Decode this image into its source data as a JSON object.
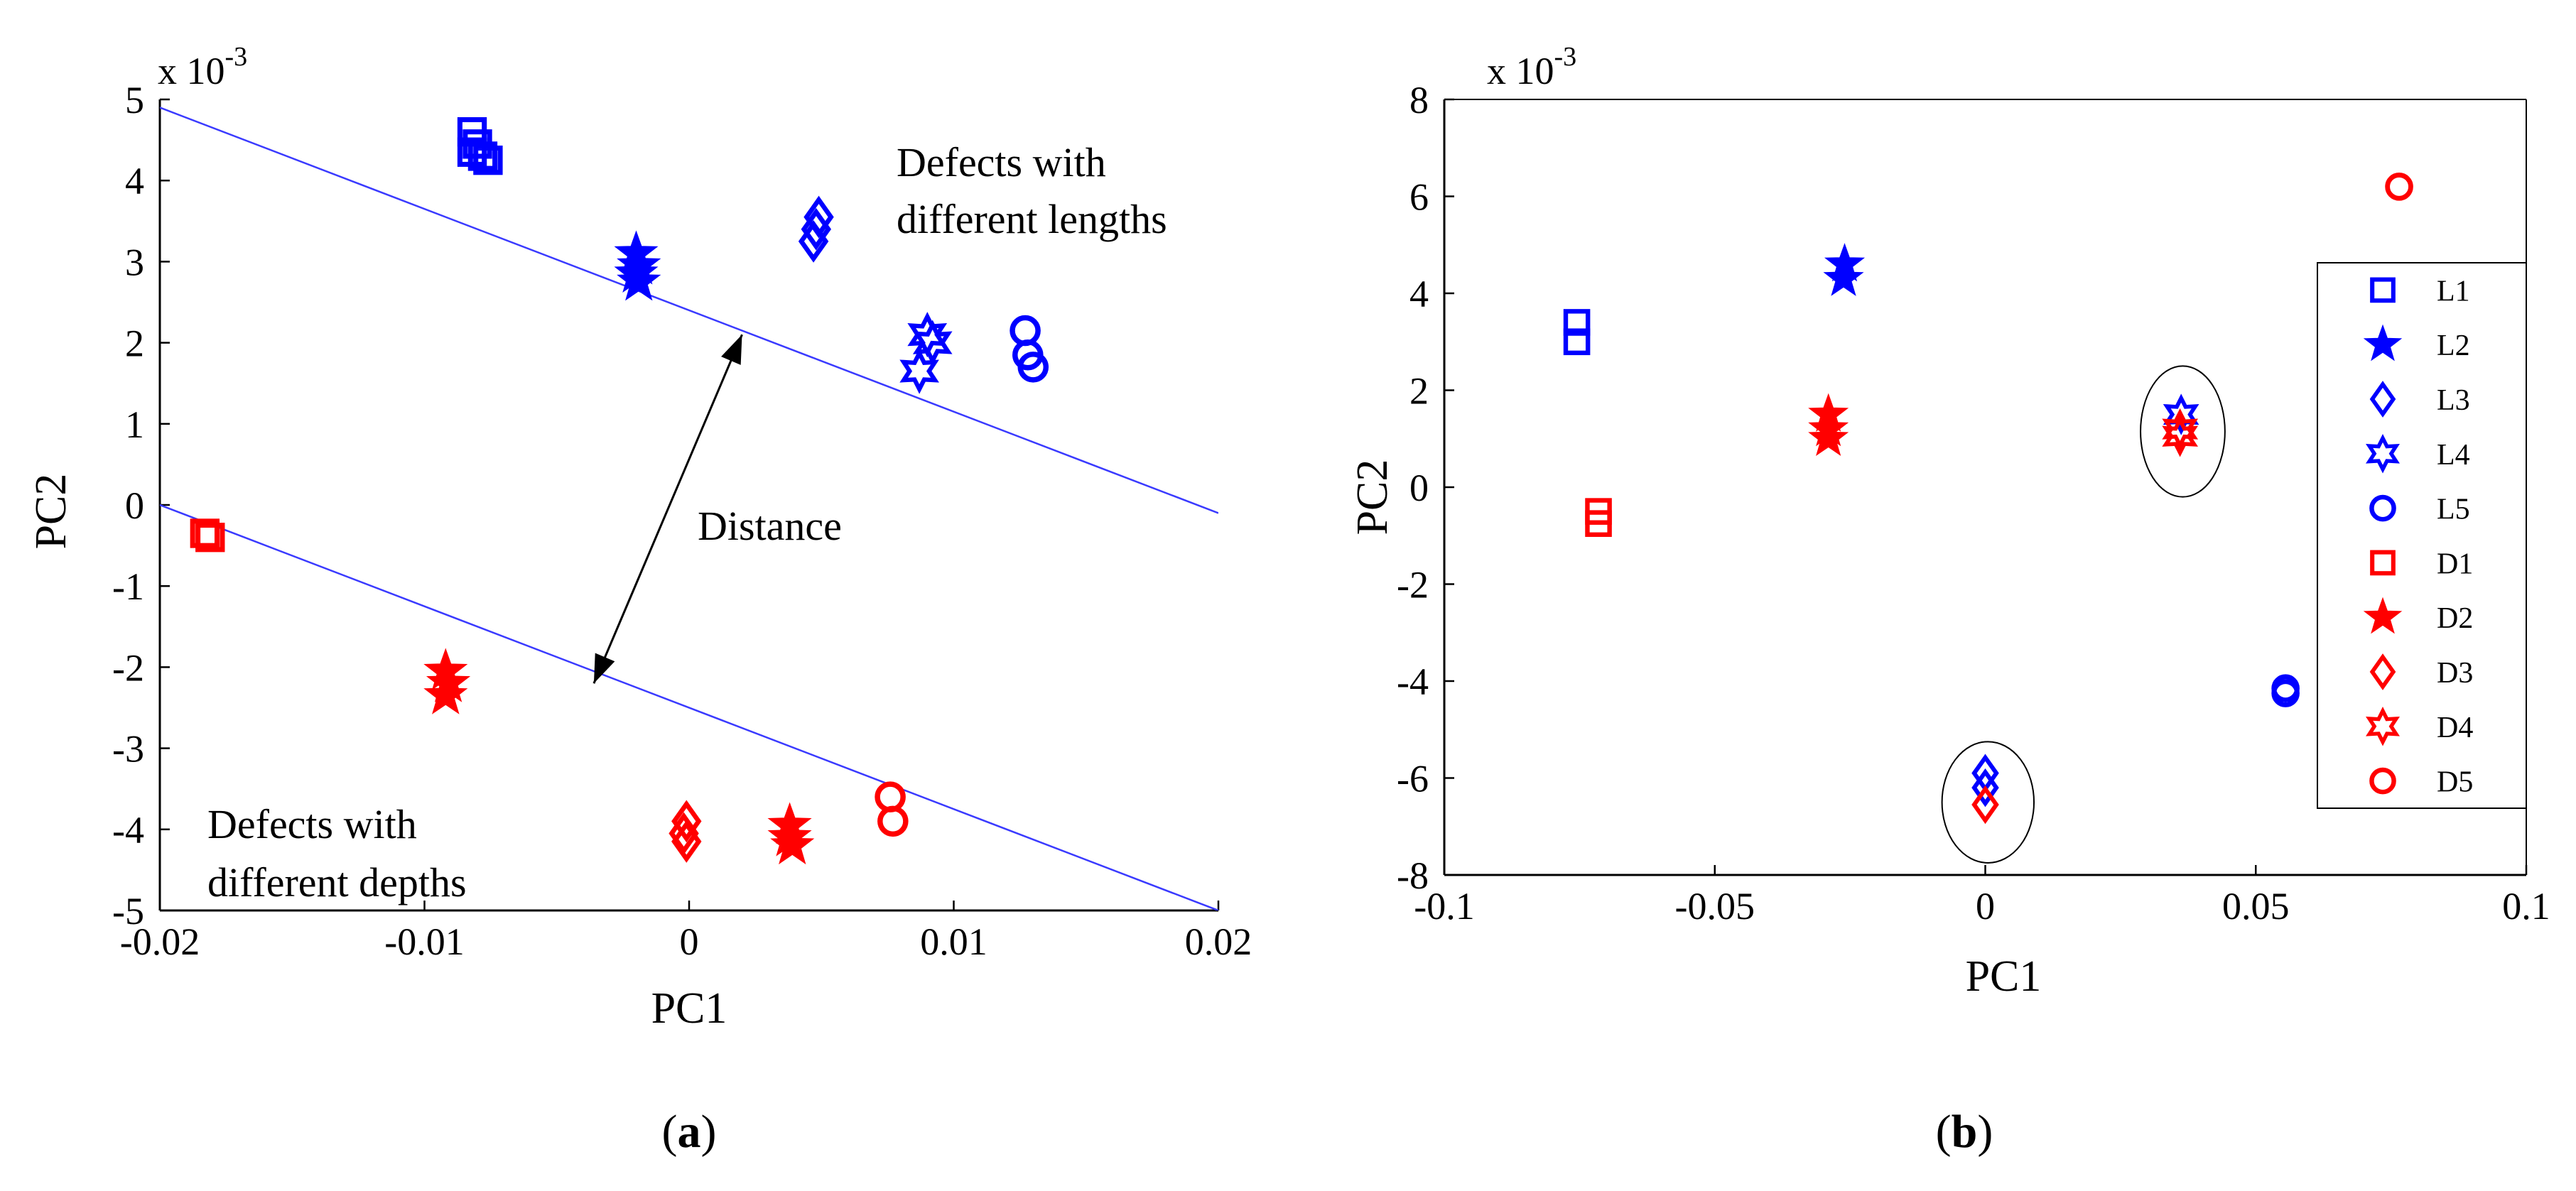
{
  "chart_data": [
    {
      "type": "scatter",
      "panel_label": "a",
      "xlabel": "PC1",
      "ylabel": "PC2",
      "y_exponent_base": "x 10",
      "y_exponent_power": "-3",
      "xlim": [
        -0.02,
        0.02
      ],
      "ylim": [
        -5,
        5
      ],
      "x_ticks": [
        -0.02,
        -0.01,
        0,
        0.01,
        0.02
      ],
      "x_tick_labels": [
        "-0.02",
        "-0.01",
        "0",
        "0.01",
        "0.02"
      ],
      "y_ticks": [
        5,
        4,
        3,
        2,
        1,
        0,
        -1,
        -2,
        -3,
        -4,
        -5
      ],
      "y_tick_labels": [
        "5",
        "4",
        "3",
        "2",
        "1",
        "0",
        "-1",
        "-2",
        "-3",
        "-4",
        "-5"
      ],
      "grid": false,
      "colors": {
        "lengths": "#0000ff",
        "depths": "#ff0000",
        "line": "#3a3aff"
      },
      "series": [
        {
          "name": "L1",
          "group": "lengths",
          "marker": "square",
          "points": [
            [
              -0.0082,
              4.6
            ],
            [
              -0.008,
              4.45
            ],
            [
              -0.0078,
              4.3
            ],
            [
              -0.0082,
              4.35
            ],
            [
              -0.0076,
              4.25
            ]
          ]
        },
        {
          "name": "L2",
          "group": "lengths",
          "marker": "star5",
          "points": [
            [
              -0.002,
              3.1
            ],
            [
              -0.0019,
              2.95
            ],
            [
              -0.002,
              2.85
            ],
            [
              -0.0019,
              2.75
            ]
          ]
        },
        {
          "name": "L3",
          "group": "lengths",
          "marker": "diamond",
          "points": [
            [
              0.0049,
              3.55
            ],
            [
              0.0048,
              3.4
            ],
            [
              0.0047,
              3.25
            ]
          ]
        },
        {
          "name": "L4",
          "group": "lengths",
          "marker": "star6",
          "points": [
            [
              0.009,
              2.1
            ],
            [
              0.0092,
              2.0
            ],
            [
              0.0087,
              1.65
            ]
          ]
        },
        {
          "name": "L5",
          "group": "lengths",
          "marker": "circle",
          "points": [
            [
              0.0127,
              2.15
            ],
            [
              0.0128,
              1.85
            ],
            [
              0.013,
              1.7
            ]
          ]
        },
        {
          "name": "D1",
          "group": "depths",
          "marker": "square",
          "points": [
            [
              -0.0183,
              -0.35
            ],
            [
              -0.0181,
              -0.4
            ]
          ]
        },
        {
          "name": "D2",
          "group": "depths",
          "marker": "star5",
          "points": [
            [
              -0.0092,
              -2.05
            ],
            [
              -0.0091,
              -2.2
            ],
            [
              -0.0092,
              -2.35
            ]
          ]
        },
        {
          "name": "D3",
          "group": "depths",
          "marker": "diamond",
          "points": [
            [
              -0.0001,
              -3.9
            ],
            [
              -0.0002,
              -4.05
            ],
            [
              -0.0001,
              -4.15
            ]
          ]
        },
        {
          "name": "D4",
          "group": "depths",
          "marker": "star5",
          "points": [
            [
              0.0038,
              -3.95
            ],
            [
              0.0038,
              -4.1
            ],
            [
              0.0039,
              -4.2
            ]
          ]
        },
        {
          "name": "D5",
          "group": "depths",
          "marker": "circle",
          "points": [
            [
              0.0076,
              -3.6
            ],
            [
              0.0077,
              -3.9
            ]
          ]
        }
      ],
      "lines": [
        {
          "name": "upper-boundary",
          "x": [
            -0.02,
            0.02
          ],
          "y": [
            4.9,
            -0.1
          ]
        },
        {
          "name": "lower-boundary",
          "x": [
            -0.02,
            0.02
          ],
          "y": [
            0.0,
            -5.0
          ]
        }
      ],
      "arrow": {
        "label": "Distance",
        "from": [
          -0.0036,
          -2.2
        ],
        "to": [
          0.002,
          2.1
        ]
      },
      "annotations": {
        "lengths_line1": "Defects with",
        "lengths_line2": "different lengths",
        "depths_line1": "Defects with",
        "depths_line2": "different depths",
        "distance": "Distance"
      }
    },
    {
      "type": "scatter",
      "panel_label": "b",
      "xlabel": "PC1",
      "ylabel": "PC2",
      "y_exponent_base": "x 10",
      "y_exponent_power": "-3",
      "xlim": [
        -0.1,
        0.1
      ],
      "ylim": [
        -8,
        8
      ],
      "x_ticks": [
        -0.1,
        -0.05,
        0,
        0.05,
        0.1
      ],
      "x_tick_labels": [
        "-0.1",
        "-0.05",
        "0",
        "0.05",
        "0.1"
      ],
      "y_ticks": [
        8,
        6,
        4,
        2,
        0,
        -2,
        -4,
        -6,
        -8
      ],
      "y_tick_labels": [
        "8",
        "6",
        "4",
        "2",
        "0",
        "-2",
        "-4",
        "-6",
        "-8"
      ],
      "grid": false,
      "legend_position": "right",
      "legend": [
        "L1",
        "L2",
        "L3",
        "L4",
        "L5",
        "D1",
        "D2",
        "D3",
        "D4",
        "D5"
      ],
      "series": [
        {
          "name": "L1",
          "group": "lengths",
          "marker": "square",
          "points": [
            [
              -0.0755,
              3.4
            ],
            [
              -0.0755,
              3.0
            ]
          ]
        },
        {
          "name": "L2",
          "group": "lengths",
          "marker": "star5",
          "points": [
            [
              -0.026,
              4.6
            ],
            [
              -0.0262,
              4.3
            ]
          ]
        },
        {
          "name": "L3",
          "group": "lengths",
          "marker": "diamond",
          "points": [
            [
              0.0,
              -5.9
            ],
            [
              0.0,
              -6.2
            ]
          ]
        },
        {
          "name": "L4",
          "group": "lengths",
          "marker": "star6",
          "points": [
            [
              0.0362,
              1.5
            ]
          ]
        },
        {
          "name": "L5",
          "group": "lengths",
          "marker": "circle",
          "points": [
            [
              0.0555,
              -4.15
            ],
            [
              0.0555,
              -4.25
            ]
          ]
        },
        {
          "name": "D1",
          "group": "depths",
          "marker": "square",
          "points": [
            [
              -0.0715,
              -0.5
            ],
            [
              -0.0715,
              -0.75
            ]
          ]
        },
        {
          "name": "D2",
          "group": "depths",
          "marker": "star5",
          "points": [
            [
              -0.029,
              1.5
            ],
            [
              -0.029,
              1.2
            ],
            [
              -0.029,
              1.0
            ]
          ]
        },
        {
          "name": "D3",
          "group": "depths",
          "marker": "diamond",
          "points": [
            [
              0.0,
              -6.55
            ]
          ]
        },
        {
          "name": "D4",
          "group": "depths",
          "marker": "star6",
          "points": [
            [
              0.036,
              1.2
            ],
            [
              0.036,
              1.05
            ]
          ]
        },
        {
          "name": "D5",
          "group": "depths",
          "marker": "circle",
          "points": [
            [
              0.0765,
              6.2
            ]
          ]
        }
      ],
      "ellipses": [
        {
          "name": "cluster-l4-d4",
          "cx": 0.0365,
          "cy": 1.15,
          "rx": 0.0078,
          "ry": 1.35
        },
        {
          "name": "cluster-l3-d3",
          "cx": 0.0005,
          "cy": -6.5,
          "rx": 0.0085,
          "ry": 1.25
        }
      ]
    }
  ],
  "captions": {
    "a_open": "(",
    "a_letter": "a",
    "a_close": ")",
    "b_open": "(",
    "b_letter": "b",
    "b_close": ")"
  }
}
